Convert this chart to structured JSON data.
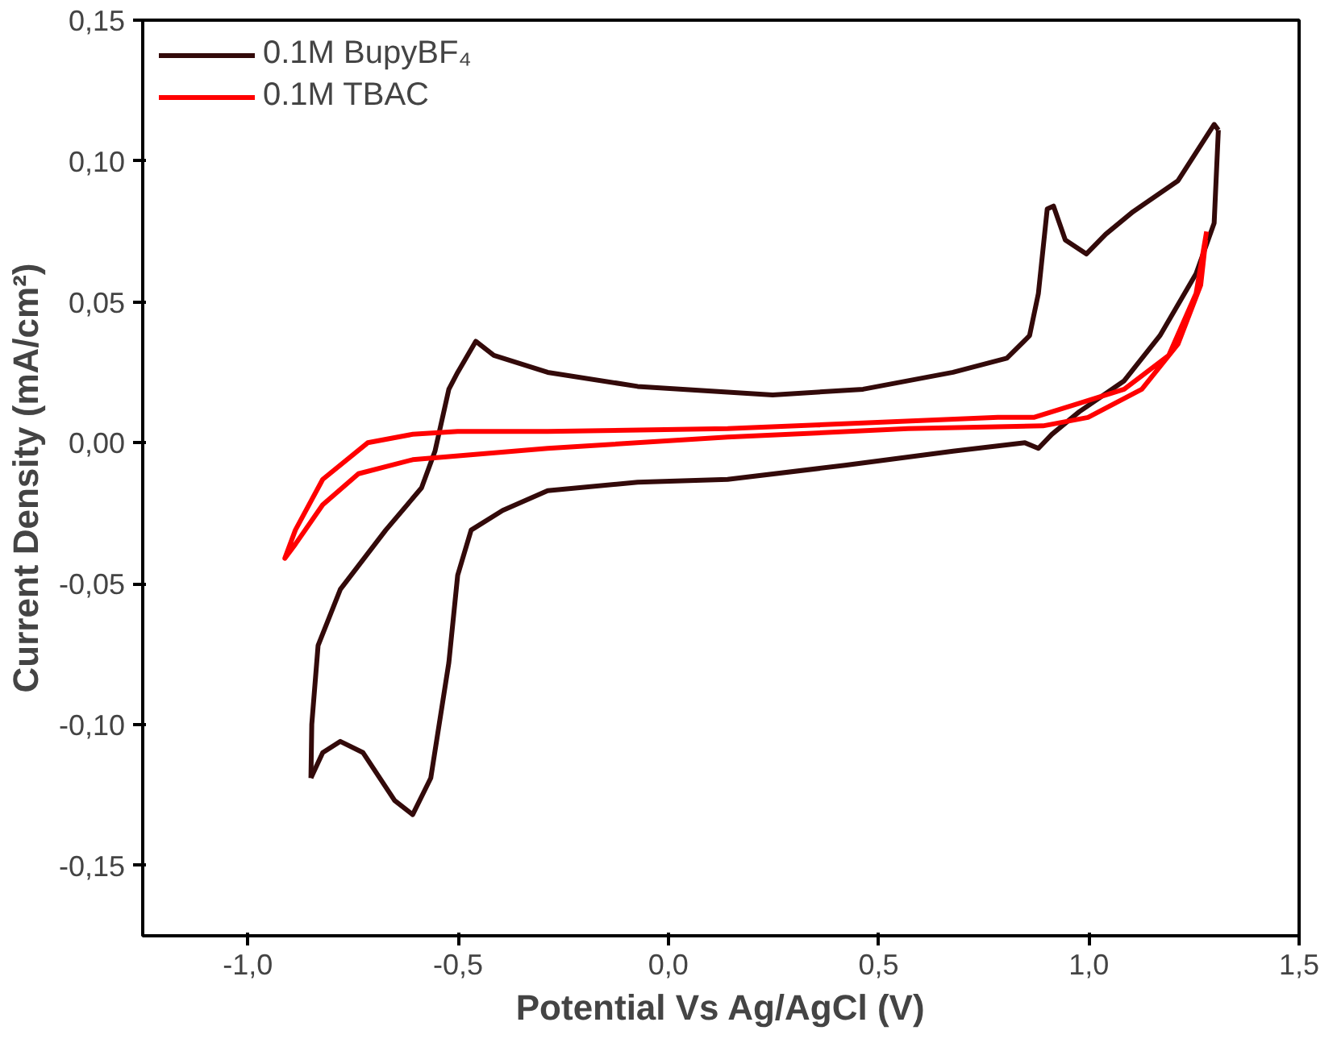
{
  "chart_data": {
    "type": "line",
    "xlabel": "Potential Vs Ag/AgCl (V)",
    "ylabel": "Current Density (mA/cm²)",
    "xlim": [
      -1.25,
      1.5
    ],
    "ylim": [
      -0.175,
      0.15
    ],
    "xticks": [
      {
        "value": -1.0,
        "label": "-1,0"
      },
      {
        "value": -0.5,
        "label": "-0,5"
      },
      {
        "value": 0.0,
        "label": "0,0"
      },
      {
        "value": 0.5,
        "label": "0,5"
      },
      {
        "value": 1.0,
        "label": "1,0"
      },
      {
        "value": 1.5,
        "label": "1,5"
      }
    ],
    "yticks": [
      {
        "value": -0.15,
        "label": "-0,15"
      },
      {
        "value": -0.1,
        "label": "-0,10"
      },
      {
        "value": -0.05,
        "label": "-0,05"
      },
      {
        "value": 0.0,
        "label": "0,00"
      },
      {
        "value": 0.05,
        "label": "0,05"
      },
      {
        "value": 0.1,
        "label": "0,10"
      },
      {
        "value": 0.15,
        "label": "0,15"
      }
    ],
    "grid": false,
    "legend": "top left",
    "line_style": "solid",
    "series": [
      {
        "name": "0.1M BupyBF₄",
        "color": "#330a0a",
        "x": [
          -0.85,
          -0.848,
          -0.833,
          -0.78,
          -0.672,
          -0.587,
          -0.555,
          -0.522,
          -0.501,
          -0.458,
          -0.415,
          -0.287,
          -0.073,
          0.248,
          0.463,
          0.677,
          0.805,
          0.859,
          0.88,
          0.901,
          0.916,
          0.944,
          0.994,
          1.04,
          1.105,
          1.212,
          1.298,
          1.308
        ],
        "values": [
          -0.119,
          -0.1,
          -0.072,
          -0.052,
          -0.031,
          -0.016,
          -0.003,
          0.019,
          0.025,
          0.036,
          0.031,
          0.025,
          0.02,
          0.017,
          0.019,
          0.025,
          0.03,
          0.038,
          0.053,
          0.083,
          0.084,
          0.072,
          0.067,
          0.074,
          0.082,
          0.093,
          0.113,
          0.111
        ]
      },
      {
        "color": "#330a0a",
        "x": [
          1.308,
          1.298,
          1.255,
          1.169,
          1.084,
          0.977,
          0.912,
          0.88,
          0.848,
          0.677,
          0.42,
          0.141,
          -0.073,
          -0.287,
          -0.394,
          -0.469,
          -0.501,
          -0.522,
          -0.565,
          -0.608,
          -0.651,
          -0.726,
          -0.78,
          -0.822,
          -0.85
        ],
        "values": [
          0.111,
          0.078,
          0.06,
          0.038,
          0.022,
          0.011,
          0.003,
          -0.002,
          0.0,
          -0.003,
          -0.008,
          -0.013,
          -0.014,
          -0.017,
          -0.024,
          -0.031,
          -0.047,
          -0.078,
          -0.119,
          -0.132,
          -0.127,
          -0.11,
          -0.106,
          -0.11,
          -0.119
        ]
      },
      {
        "name": "0.1M TBAC",
        "color": "#ff0000",
        "x": [
          1.28,
          1.255,
          1.19,
          1.084,
          0.977,
          0.869,
          0.784,
          0.463,
          0.141,
          -0.287,
          -0.501,
          -0.608,
          -0.715,
          -0.822,
          -0.887,
          -0.912,
          -0.887,
          -0.822,
          -0.737,
          -0.608,
          -0.287,
          0.141,
          0.57,
          0.891,
          0.998,
          1.126,
          1.212,
          1.266,
          1.278
        ],
        "values": [
          0.075,
          0.053,
          0.031,
          0.019,
          0.014,
          0.009,
          0.009,
          0.007,
          0.005,
          0.004,
          0.004,
          0.003,
          0.0,
          -0.013,
          -0.031,
          -0.041,
          -0.036,
          -0.022,
          -0.011,
          -0.006,
          -0.002,
          0.002,
          0.005,
          0.006,
          0.009,
          0.019,
          0.035,
          0.056,
          0.072
        ]
      }
    ]
  }
}
